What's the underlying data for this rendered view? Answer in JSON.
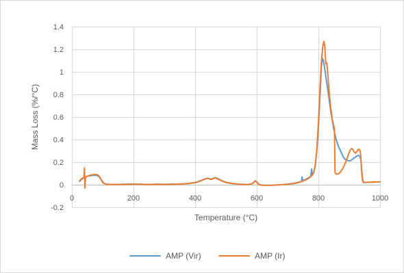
{
  "chart_data": {
    "type": "line",
    "xlabel": "Temperature (°C)",
    "ylabel": "Mass Loss (%/°C)",
    "xlim": [
      0,
      1000
    ],
    "ylim": [
      -0.2,
      1.4
    ],
    "xticks": [
      0,
      200,
      400,
      600,
      800,
      1000
    ],
    "xtick_labels": [
      "0",
      "200",
      "400",
      "600",
      "800",
      "1000"
    ],
    "yticks": [
      -0.2,
      0,
      0.2,
      0.4,
      0.6,
      0.8,
      1,
      1.2,
      1.4
    ],
    "ytick_labels": [
      "-0.2",
      "0",
      "0.2",
      "0.4",
      "0.6",
      "0.8",
      "1",
      "1.2",
      "1.4"
    ],
    "grid": {
      "horizontal": true,
      "vertical": true
    },
    "legend": {
      "placement": "bottom"
    },
    "series": [
      {
        "name": "AMP (Vir)",
        "color": "#5B9BD5",
        "x": [
          25,
          30,
          35,
          40,
          45,
          50,
          55,
          60,
          65,
          70,
          75,
          80,
          85,
          90,
          95,
          100,
          105,
          110,
          120,
          140,
          160,
          180,
          200,
          220,
          240,
          260,
          280,
          300,
          320,
          340,
          360,
          380,
          400,
          410,
          420,
          430,
          440,
          445,
          450,
          455,
          460,
          465,
          470,
          480,
          490,
          500,
          520,
          540,
          560,
          575,
          585,
          590,
          595,
          600,
          605,
          610,
          620,
          640,
          660,
          680,
          700,
          720,
          740,
          745,
          747,
          749,
          760,
          770,
          775,
          778,
          780,
          785,
          790,
          795,
          800,
          805,
          810,
          813,
          816,
          820,
          825,
          830,
          835,
          840,
          845,
          850,
          855,
          860,
          865,
          870,
          875,
          880,
          885,
          890,
          895,
          900,
          905,
          910,
          915,
          920,
          925,
          930,
          935,
          938,
          941,
          944,
          947,
          960,
          980,
          1000
        ],
        "y": [
          0.03,
          0.045,
          0.055,
          0.065,
          0.07,
          0.075,
          0.078,
          0.08,
          0.082,
          0.084,
          0.085,
          0.083,
          0.078,
          0.065,
          0.045,
          0.025,
          0.012,
          0.006,
          0.004,
          0.003,
          0.004,
          0.005,
          0.006,
          0.004,
          0.003,
          0.004,
          0.005,
          0.004,
          0.005,
          0.006,
          0.008,
          0.012,
          0.02,
          0.028,
          0.038,
          0.05,
          0.058,
          0.055,
          0.05,
          0.052,
          0.058,
          0.063,
          0.058,
          0.045,
          0.032,
          0.022,
          0.012,
          0.006,
          0.003,
          0.004,
          0.01,
          0.02,
          0.035,
          0.025,
          0.008,
          0,
          -0.004,
          -0.005,
          -0.003,
          0,
          0.005,
          0.012,
          0.025,
          0.03,
          0.07,
          0.035,
          0.05,
          0.065,
          0.075,
          0.14,
          0.085,
          0.11,
          0.18,
          0.3,
          0.5,
          0.78,
          1.05,
          1.12,
          1.1,
          1.04,
          0.94,
          0.85,
          0.75,
          0.65,
          0.57,
          0.49,
          0.43,
          0.38,
          0.34,
          0.31,
          0.28,
          0.25,
          0.23,
          0.22,
          0.215,
          0.21,
          0.215,
          0.225,
          0.235,
          0.245,
          0.255,
          0.26,
          0.25,
          0.22,
          0.12,
          0.04,
          0.02,
          0.022,
          0.023,
          0.025
        ]
      },
      {
        "name": "AMP (Ir)",
        "color": "#ED7D31",
        "x": [
          25,
          30,
          35,
          39,
          41,
          42,
          44,
          50,
          55,
          60,
          65,
          70,
          75,
          80,
          85,
          90,
          95,
          100,
          105,
          110,
          120,
          140,
          160,
          180,
          200,
          210,
          220,
          240,
          260,
          280,
          300,
          320,
          340,
          360,
          380,
          400,
          410,
          420,
          430,
          440,
          445,
          450,
          455,
          460,
          465,
          470,
          480,
          490,
          500,
          520,
          540,
          560,
          575,
          585,
          590,
          595,
          600,
          605,
          610,
          620,
          640,
          660,
          680,
          700,
          720,
          740,
          760,
          770,
          780,
          785,
          790,
          795,
          800,
          805,
          810,
          815,
          818,
          821,
          824,
          827,
          830,
          835,
          840,
          845,
          850,
          852,
          854,
          857,
          862,
          867,
          872,
          877,
          882,
          887,
          892,
          897,
          902,
          906,
          909,
          912,
          916,
          920,
          925,
          930,
          934,
          937,
          940,
          943,
          946,
          960,
          980,
          1000
        ],
        "y": [
          0.035,
          0.05,
          0.06,
          0.065,
          0.15,
          -0.03,
          0.065,
          0.075,
          0.08,
          0.085,
          0.088,
          0.09,
          0.09,
          0.09,
          0.085,
          0.07,
          0.045,
          0.02,
          0.01,
          0.004,
          0.002,
          0.003,
          0.002,
          0.004,
          0.006,
          0.003,
          0.005,
          0.002,
          0.003,
          0.004,
          0.003,
          0.004,
          0.005,
          0.007,
          0.01,
          0.018,
          0.026,
          0.036,
          0.048,
          0.056,
          0.052,
          0.048,
          0.05,
          0.056,
          0.06,
          0.055,
          0.042,
          0.03,
          0.02,
          0.01,
          0.005,
          0.002,
          0.003,
          0.008,
          0.02,
          0.035,
          0.022,
          0.006,
          -0.002,
          -0.005,
          -0.005,
          -0.003,
          0,
          0.004,
          0.01,
          0.022,
          0.045,
          0.06,
          0.085,
          0.11,
          0.17,
          0.32,
          0.55,
          0.85,
          1.1,
          1.24,
          1.27,
          1.22,
          1.07,
          1.08,
          1.0,
          0.82,
          0.68,
          0.58,
          0.52,
          0.5,
          0.11,
          0.095,
          0.095,
          0.1,
          0.115,
          0.135,
          0.16,
          0.19,
          0.225,
          0.265,
          0.3,
          0.318,
          0.32,
          0.31,
          0.29,
          0.28,
          0.295,
          0.315,
          0.31,
          0.27,
          0.13,
          0.04,
          0.02,
          0.022,
          0.024,
          0.025
        ]
      }
    ]
  }
}
